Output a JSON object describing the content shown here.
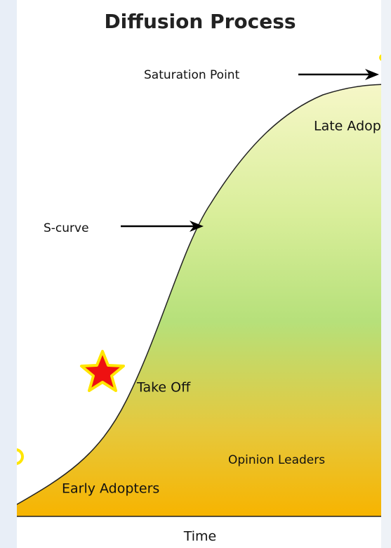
{
  "title": "Diffusion Process",
  "labels": {
    "saturation_point": "Saturation Point",
    "late_adopters": "Late Adopters",
    "s_curve": "S-curve",
    "take_off": "Take Off",
    "opinion_leaders": "Opinion Leaders",
    "early_adopters": "Early Adopters"
  },
  "axis_label": "Time"
}
